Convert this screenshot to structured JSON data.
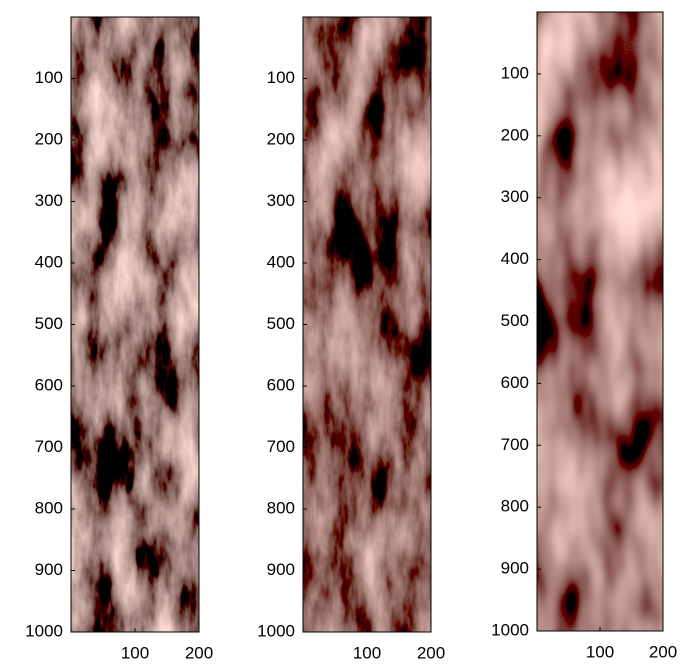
{
  "chart_data": [
    {
      "type": "image",
      "xlim": [
        0,
        200
      ],
      "ylim": [
        0,
        1000
      ],
      "y_reversed": true,
      "xticks": [
        100,
        200
      ],
      "yticks": [
        100,
        200,
        300,
        400,
        500,
        600,
        700,
        800,
        900,
        1000
      ]
    },
    {
      "type": "image",
      "xlim": [
        0,
        200
      ],
      "ylim": [
        0,
        1000
      ],
      "y_reversed": true,
      "xticks": [
        100,
        200
      ],
      "yticks": [
        100,
        200,
        300,
        400,
        500,
        600,
        700,
        800,
        900,
        1000
      ]
    },
    {
      "type": "image",
      "xlim": [
        0,
        200
      ],
      "ylim": [
        0,
        1000
      ],
      "y_reversed": true,
      "xticks": [
        100,
        200
      ],
      "yticks": [
        100,
        200,
        300,
        400,
        500,
        600,
        700,
        800,
        900,
        1000
      ]
    }
  ]
}
